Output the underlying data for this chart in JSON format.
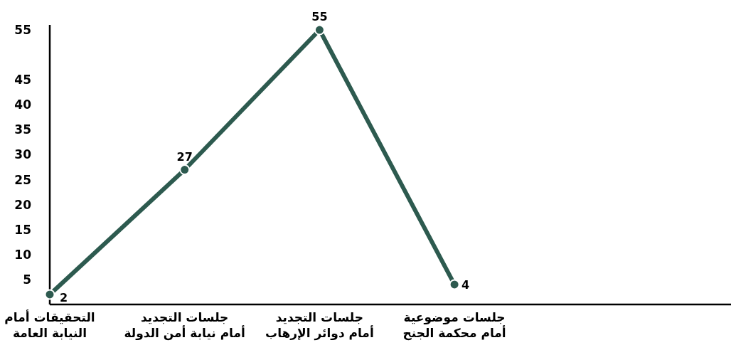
{
  "chart_data": {
    "type": "line",
    "categories": [
      "التحقيقات أمام\nالنيابة العامة",
      "جلسات التجديد\nأمام نيابة أمن الدولة",
      "جلسات التجديد\nأمام دوائر الإرهاب",
      "جلسات موضوعية\nأمام محكمة الجنح"
    ],
    "series": [
      {
        "color": "#2d5a4f",
        "values": [
          2,
          27,
          55,
          4
        ]
      }
    ],
    "ylim": [
      0,
      56
    ],
    "yticks": [
      5,
      10,
      15,
      20,
      25,
      30,
      35,
      40,
      45,
      55
    ],
    "marker": "circle",
    "line_style": "solid",
    "data_labels": true
  }
}
